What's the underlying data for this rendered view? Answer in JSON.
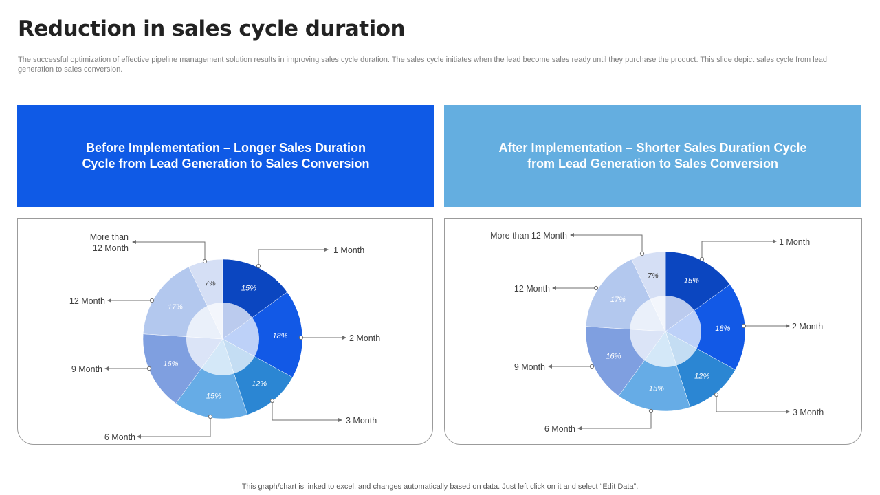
{
  "page": {
    "title": "Reduction in sales cycle duration",
    "subtitle": "The successful optimization of effective pipeline management solution results in improving sales cycle duration. The sales cycle initiates when the lead become sales ready until they purchase the product. This slide depict sales cycle from lead generation to sales conversion.",
    "footer": "This graph/chart is linked to excel, and changes automatically based on data. Just left click on it and select “Edit Data”."
  },
  "headers": {
    "before": "Before Implementation – Longer Sales Duration Cycle from Lead Generation to Sales Conversion",
    "after": "After Implementation – Shorter Sales Duration Cycle from Lead Generation to Sales Conversion"
  },
  "colors": {
    "header_before": "#0f5ae6",
    "header_after": "#64aee0",
    "slices": [
      "#0b46c0",
      "#1259e6",
      "#2b86d3",
      "#66ace6",
      "#7f9fe0",
      "#b3c8ee",
      "#d5dff5"
    ]
  },
  "chart_data": [
    {
      "type": "pie",
      "categories": [
        "1 Month",
        "2 Month",
        "3 Month",
        "6 Month",
        "9 Month",
        "12 Month",
        "More than 12 Month"
      ],
      "legend_labels": [
        "1 Month",
        "2 Month",
        "3 Month",
        "6 Month",
        "9 Month",
        "12 Month",
        "More than\n12 Month"
      ],
      "values": [
        15,
        18,
        12,
        15,
        16,
        17,
        7
      ],
      "value_labels": [
        "15%",
        "18%",
        "12%",
        "15%",
        "16%",
        "17%",
        "7%"
      ]
    },
    {
      "type": "pie",
      "categories": [
        "1 Month",
        "2 Month",
        "3 Month",
        "6 Month",
        "9 Month",
        "12 Month",
        "More than 12 Month"
      ],
      "legend_labels": [
        "1 Month",
        "2 Month",
        "3 Month",
        "6 Month",
        "9 Month",
        "12 Month",
        "More than 12 Month"
      ],
      "values": [
        15,
        18,
        12,
        15,
        16,
        17,
        7
      ],
      "value_labels": [
        "15%",
        "18%",
        "12%",
        "15%",
        "16%",
        "17%",
        "7%"
      ]
    }
  ]
}
